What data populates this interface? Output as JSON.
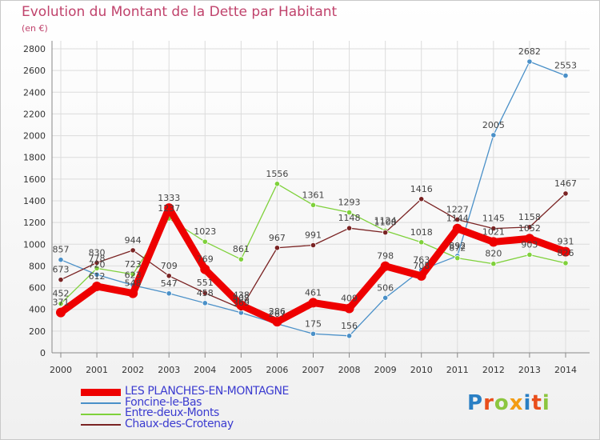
{
  "chart_data": {
    "type": "line",
    "title": "Evolution du Montant de la Dette par Habitant",
    "subtitle": "(en €)",
    "x": [
      "2000",
      "2001",
      "2002",
      "2003",
      "2004",
      "2005",
      "2006",
      "2007",
      "2008",
      "2009",
      "2010",
      "2011",
      "2012",
      "2013",
      "2014"
    ],
    "ylim": [
      0,
      2800
    ],
    "yticks": [
      0,
      200,
      400,
      600,
      800,
      1000,
      1200,
      1400,
      1600,
      1800,
      2000,
      2200,
      2400,
      2600,
      2800
    ],
    "grid": true,
    "legend_position": "bottom-left",
    "series": [
      {
        "name": "LES PLANCHES-EN-MONTAGNE",
        "color": "#ee0000",
        "values": [
          371,
          612,
          548,
          1333,
          769,
          438,
          286,
          461,
          409,
          798,
          708,
          1144,
          1021,
          1052,
          931
        ]
      },
      {
        "name": "Foncine-le-Bas",
        "color": "#4a90c8",
        "values": [
          857,
          720,
          623,
          547,
          458,
          369,
          267,
          175,
          156,
          506,
          763,
          892,
          2005,
          2682,
          2553
        ]
      },
      {
        "name": "Entre-deux-Monts",
        "color": "#7fd13b",
        "values": [
          452,
          778,
          723,
          1237,
          1023,
          861,
          1556,
          1361,
          1293,
          1124,
          1018,
          872,
          820,
          903,
          826
        ]
      },
      {
        "name": "Chaux-des-Crotenay",
        "color": "#7a2323",
        "values": [
          673,
          830,
          944,
          709,
          551,
          408,
          967,
          991,
          1148,
          1108,
          1416,
          1227,
          1145,
          1158,
          1467
        ]
      }
    ]
  },
  "logo": {
    "text": "Proxiti"
  }
}
